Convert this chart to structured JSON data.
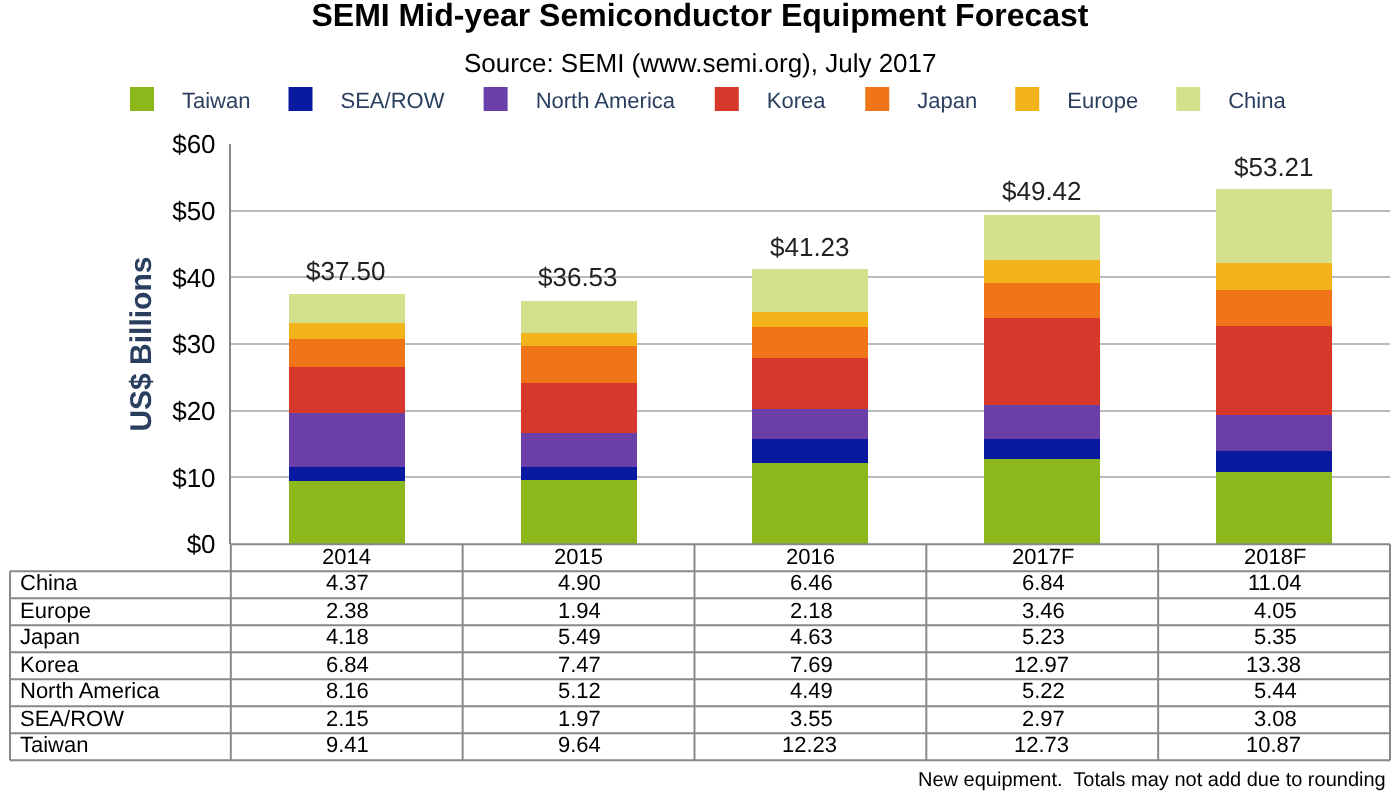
{
  "chart_data": {
    "type": "bar",
    "title": "SEMI Mid-year Semiconductor Equipment Forecast",
    "subtitle": "Source: SEMI (www.semi.org), July 2017",
    "ylabel": "US$ Billions",
    "categories": [
      "2014",
      "2015",
      "2016",
      "2017F",
      "2018F"
    ],
    "series": [
      {
        "name": "Taiwan",
        "color": "#8cb81c",
        "values": [
          9.41,
          9.64,
          12.23,
          12.73,
          10.87
        ],
        "value_labels": [
          "9.41",
          "9.64",
          "12.23",
          "12.73",
          "10.87"
        ]
      },
      {
        "name": "SEA/ROW",
        "color": "#0a1aa0",
        "values": [
          2.15,
          1.97,
          3.55,
          2.97,
          3.08
        ],
        "value_labels": [
          "2.15",
          "1.97",
          "3.55",
          "2.97",
          "3.08"
        ]
      },
      {
        "name": "North America",
        "color": "#6a3fa8",
        "values": [
          8.16,
          5.12,
          4.49,
          5.22,
          5.44
        ],
        "value_labels": [
          "8.16",
          "5.12",
          "4.49",
          "5.22",
          "5.44"
        ]
      },
      {
        "name": "Korea",
        "color": "#d8372b",
        "values": [
          6.84,
          7.47,
          7.69,
          12.97,
          13.38
        ],
        "value_labels": [
          "6.84",
          "7.47",
          "7.69",
          "12.97",
          "13.38"
        ]
      },
      {
        "name": "Japan",
        "color": "#ef7518",
        "values": [
          4.18,
          5.49,
          4.63,
          5.23,
          5.35
        ],
        "value_labels": [
          "4.18",
          "5.49",
          "4.63",
          "5.23",
          "5.35"
        ]
      },
      {
        "name": "Europe",
        "color": "#f3b41b",
        "values": [
          2.38,
          1.94,
          2.18,
          3.46,
          4.05
        ],
        "value_labels": [
          "2.38",
          "1.94",
          "2.18",
          "3.46",
          "4.05"
        ]
      },
      {
        "name": "China",
        "color": "#d4e08c",
        "values": [
          4.37,
          4.9,
          6.46,
          6.84,
          11.04
        ],
        "value_labels": [
          "4.37",
          "4.90",
          "6.46",
          "6.84",
          "11.04"
        ]
      }
    ],
    "stacked": true,
    "totals": [
      "$37.50",
      "$36.53",
      "$41.23",
      "$49.42",
      "$53.21"
    ],
    "ylim": [
      0,
      60
    ],
    "yticks": [
      {
        "value": 0,
        "label": "$0"
      },
      {
        "value": 10,
        "label": "$10"
      },
      {
        "value": 20,
        "label": "$20"
      },
      {
        "value": 30,
        "label": "$30"
      },
      {
        "value": 40,
        "label": "$40"
      },
      {
        "value": 50,
        "label": "$50"
      },
      {
        "value": 60,
        "label": "$60"
      }
    ],
    "grid": "y",
    "legend": "top",
    "tick_labels": "y",
    "annotations": [
      "New equipment.  Totals may not add due to rounding"
    ]
  }
}
